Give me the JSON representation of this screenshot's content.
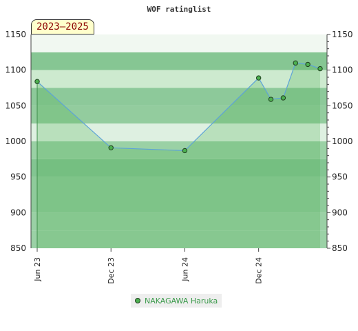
{
  "chart_data": {
    "type": "line",
    "title": "WOF ratinglist",
    "period_label": "2023–2025",
    "x_ticks": [
      "Jun 23",
      "Dec 23",
      "Jun 24",
      "Dec 24"
    ],
    "y_ticks": [
      850,
      900,
      950,
      1000,
      1050,
      1100,
      1150
    ],
    "ylim": [
      850,
      1150
    ],
    "xlim": [
      "2023-06",
      "2025-05"
    ],
    "series": [
      {
        "name": "NAKAGAWA Haruka",
        "color": "#4caf50",
        "points": [
          {
            "x": "2023-06",
            "y": 1084
          },
          {
            "x": "2023-12",
            "y": 991
          },
          {
            "x": "2024-06",
            "y": 987
          },
          {
            "x": "2024-12",
            "y": 1089
          },
          {
            "x": "2025-01",
            "y": 1059
          },
          {
            "x": "2025-02",
            "y": 1061
          },
          {
            "x": "2025-03",
            "y": 1110
          },
          {
            "x": "2025-04",
            "y": 1108
          },
          {
            "x": "2025-05",
            "y": 1102
          }
        ]
      }
    ],
    "right_axis": true,
    "legend_position": "bottom"
  }
}
